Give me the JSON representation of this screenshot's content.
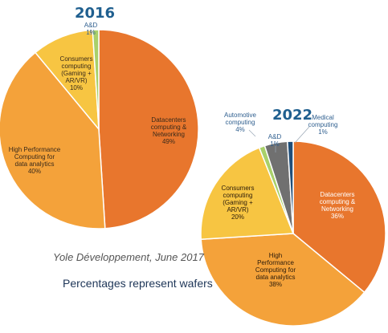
{
  "chart_data": [
    {
      "type": "pie",
      "title": "2016",
      "slices": [
        {
          "label": "Datacenters computing & Networking",
          "value": 49,
          "label_lines": [
            "Datacenters",
            "computing &",
            "Networking",
            "49%"
          ],
          "color": "#e8762d"
        },
        {
          "label": "High Performance Computing for data analytics",
          "value": 40,
          "label_lines": [
            "High Performance",
            "Computing  for",
            "data analytics",
            "40%"
          ],
          "color": "#f4a23a"
        },
        {
          "label": "Consumers computing (Gaming + AR/VR)",
          "value": 10,
          "label_lines": [
            "Consumers",
            "computing",
            "(Gaming +",
            "AR/VR)",
            "10%"
          ],
          "color": "#f7c542"
        },
        {
          "label": "A&D",
          "value": 1,
          "label_lines": [
            "A&D",
            "1%"
          ],
          "color": "#a9d06a"
        }
      ]
    },
    {
      "type": "pie",
      "title": "2022",
      "slices": [
        {
          "label": "Datacenters computing & Networking",
          "value": 36,
          "label_lines": [
            "Datacenters",
            "computing &",
            "Networking",
            "36%"
          ],
          "color": "#e8762d"
        },
        {
          "label": "High Performance Computing for data analytics",
          "value": 38,
          "label_lines": [
            "High",
            "Performance",
            "Computing  for",
            "data analytics",
            "38%"
          ],
          "color": "#f4a23a"
        },
        {
          "label": "Consumers computing (Gaming + AR/VR)",
          "value": 20,
          "label_lines": [
            "Consumers",
            "computing",
            "(Gaming +",
            "AR/VR)",
            "20%"
          ],
          "color": "#f7c542"
        },
        {
          "label": "A&D",
          "value": 1,
          "label_lines": [
            "A&D",
            "1%"
          ],
          "color": "#a9d06a"
        },
        {
          "label": "Automotive computing",
          "value": 4,
          "label_lines": [
            "Automotive",
            "computing",
            "4%"
          ],
          "color": "#707070"
        },
        {
          "label": "Medical computing",
          "value": 1,
          "label_lines": [
            "Medical",
            "computing",
            "1%"
          ],
          "color": "#1f4e79"
        }
      ]
    }
  ],
  "source": "Yole Développement, June 2017",
  "note": "Percentages represent wafers"
}
